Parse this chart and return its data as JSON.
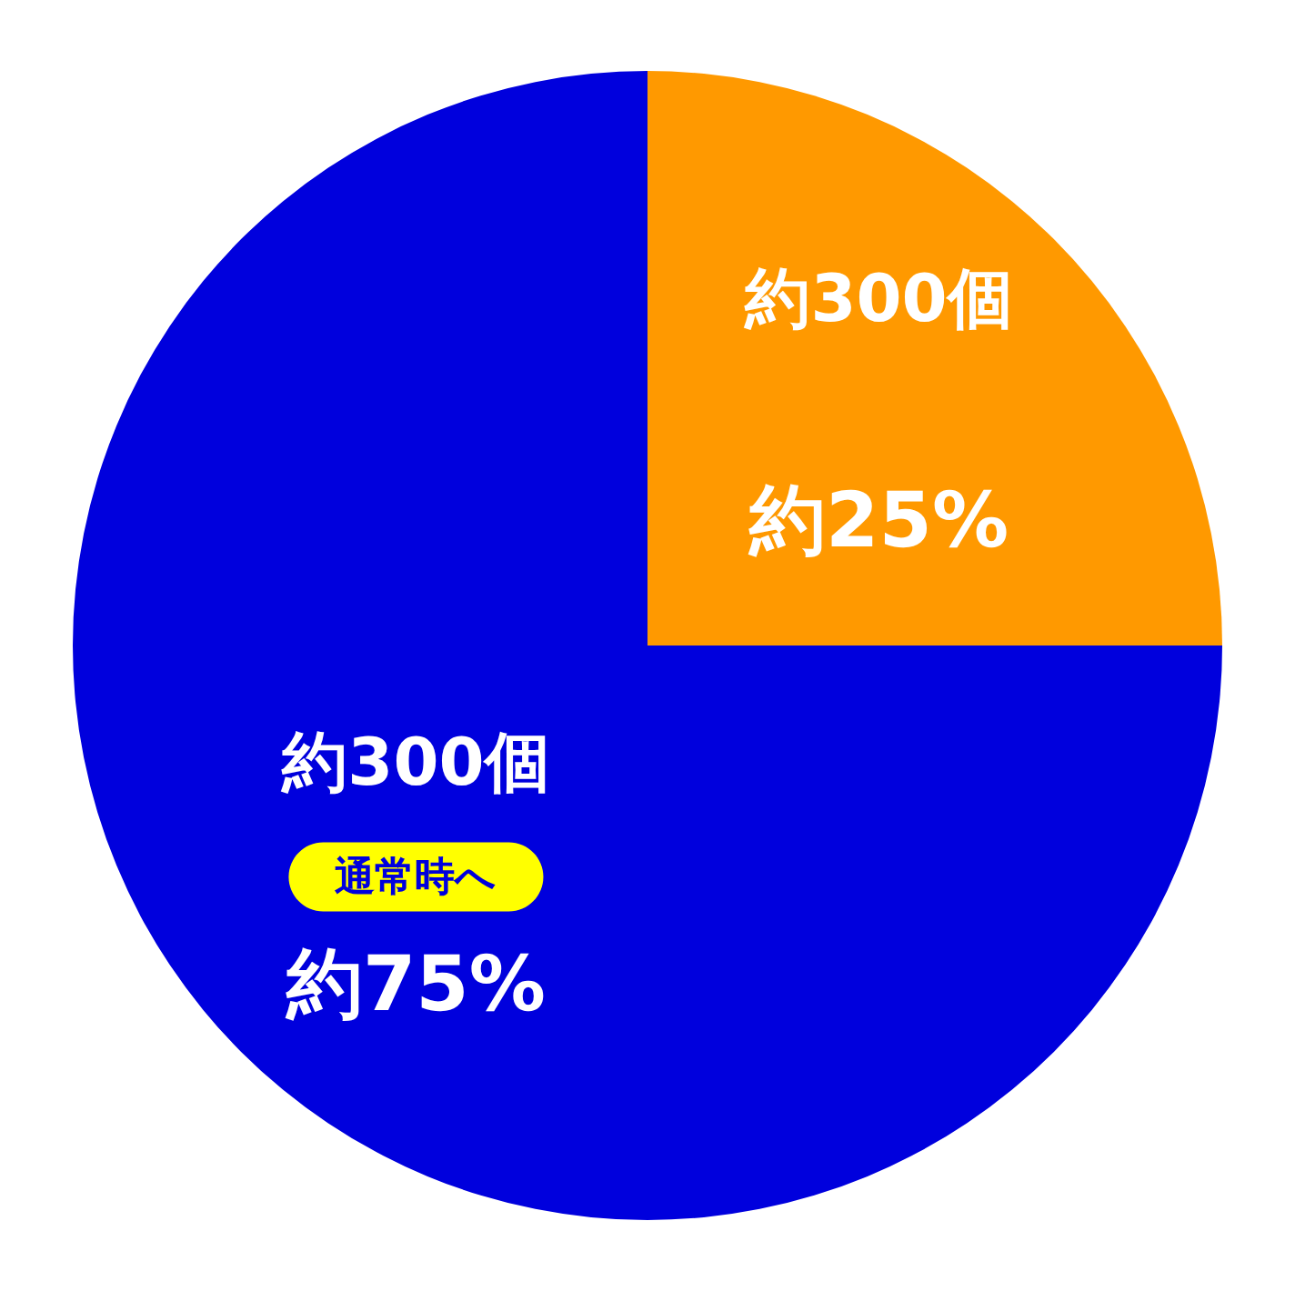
{
  "chart_data": {
    "type": "pie",
    "categories": [
      null,
      "通常時へ"
    ],
    "values": [
      25,
      75
    ],
    "colors": [
      "#ff9900",
      "#0000dd"
    ],
    "value_labels": [
      "約25%",
      "約75%"
    ],
    "annotations": [
      "約300個",
      "約300個"
    ]
  }
}
